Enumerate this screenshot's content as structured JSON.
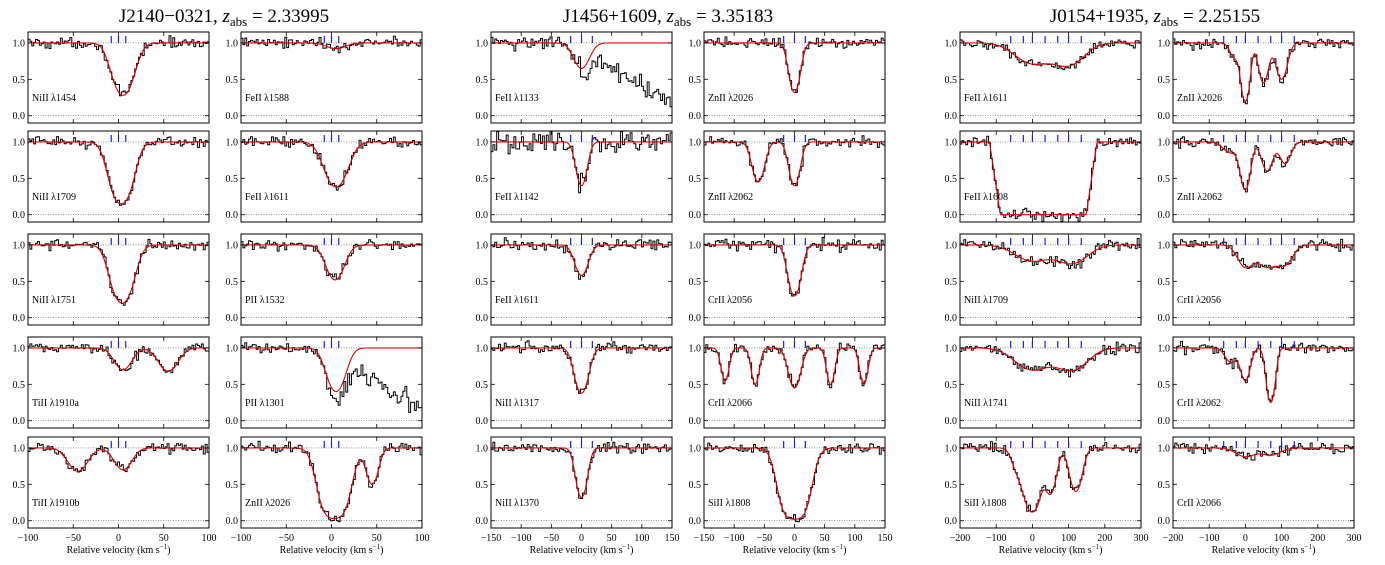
{
  "figure": {
    "groups": [
      {
        "quasar": "J2140−0321",
        "z_label": "z",
        "z_sub": "abs",
        "z_value": " = 2.33995",
        "xlim": [
          -100,
          100
        ],
        "xticks": [
          -100,
          -50,
          0,
          50,
          100
        ],
        "xlabel": "Relative velocity (km s",
        "xlabel_sup": "−1",
        "xlabel_end": ")",
        "component_velocities": [
          -8,
          0,
          8
        ],
        "columns": [
          [
            "NiII λ1454",
            "NiII λ1709",
            "NiII λ1751",
            "TiII λ1910a",
            "TiII λ1910b"
          ],
          [
            "FeII λ1588",
            "FeII λ1611",
            "PII λ1532",
            "PII λ1301",
            "ZnII λ2026"
          ]
        ]
      },
      {
        "quasar": "J1456+1609",
        "z_label": "z",
        "z_sub": "abs",
        "z_value": " = 3.35183",
        "xlim": [
          -150,
          150
        ],
        "xticks": [
          -150,
          -100,
          -50,
          0,
          50,
          100,
          150
        ],
        "xlabel": "Relative velocity (km s",
        "xlabel_sup": "−1",
        "xlabel_end": ")",
        "component_velocities": [
          -18,
          0,
          18
        ],
        "columns": [
          [
            "FeII λ1133",
            "FeII λ1142",
            "FeII λ1611",
            "NiII λ1317",
            "NiII λ1370"
          ],
          [
            "ZnII λ2026",
            "ZnII λ2062",
            "CrII λ2056",
            "CrII λ2066",
            "SiII λ1808"
          ]
        ]
      },
      {
        "quasar": "J0154+1935",
        "z_label": "z",
        "z_sub": "abs",
        "z_value": " = 2.25155",
        "xlim": [
          -200,
          300
        ],
        "xticks": [
          -200,
          -100,
          0,
          100,
          200,
          300
        ],
        "xlabel": "Relative velocity (km s",
        "xlabel_sup": "−1",
        "xlabel_end": ")",
        "component_velocities": [
          -60,
          -25,
          0,
          35,
          70,
          100,
          135
        ],
        "columns": [
          [
            "FeII λ1611",
            "FeII λ1608",
            "NiII λ1709",
            "NiII λ1741",
            "SiII λ1808"
          ],
          [
            "ZnII λ2026",
            "ZnII λ2062",
            "CrII λ2056",
            "CrII λ2062",
            "CrII λ2066"
          ]
        ]
      }
    ],
    "ylim": [
      -0.1,
      1.15
    ],
    "yticks": [
      "0.0",
      "0.5",
      "1.0"
    ],
    "colors": {
      "data": "#000000",
      "model": "#e00000",
      "ticks": "#1a1aff",
      "continuum": "#000000"
    }
  },
  "chart_data": {
    "type": "line",
    "description_of_axes": {
      "x": "Relative velocity (km s−1)",
      "y": "normalized flux"
    },
    "panels": [
      {
        "group": 0,
        "col": 0,
        "row": 0,
        "line": "NiII λ1454",
        "comps": [
          {
            "v": 5,
            "d": 0.72,
            "w": 10
          }
        ]
      },
      {
        "group": 0,
        "col": 0,
        "row": 1,
        "line": "NiII λ1709",
        "comps": [
          {
            "v": 3,
            "d": 0.85,
            "w": 10
          }
        ]
      },
      {
        "group": 0,
        "col": 0,
        "row": 2,
        "line": "NiII λ1751",
        "comps": [
          {
            "v": 4,
            "d": 0.8,
            "w": 10
          }
        ]
      },
      {
        "group": 0,
        "col": 0,
        "row": 3,
        "line": "TiII λ1910a",
        "comps": [
          {
            "v": 5,
            "d": 0.3,
            "w": 9
          },
          {
            "v": 55,
            "d": 0.32,
            "w": 10
          }
        ]
      },
      {
        "group": 0,
        "col": 0,
        "row": 4,
        "line": "TiII λ1910b",
        "comps": [
          {
            "v": -45,
            "d": 0.32,
            "w": 10
          },
          {
            "v": 5,
            "d": 0.3,
            "w": 9
          }
        ]
      },
      {
        "group": 0,
        "col": 1,
        "row": 0,
        "line": "FeII λ1588",
        "comps": [
          {
            "v": 5,
            "d": 0.08,
            "w": 10
          }
        ]
      },
      {
        "group": 0,
        "col": 1,
        "row": 1,
        "line": "FeII λ1611",
        "comps": [
          {
            "v": 5,
            "d": 0.62,
            "w": 11
          }
        ]
      },
      {
        "group": 0,
        "col": 1,
        "row": 2,
        "line": "PII λ1532",
        "comps": [
          {
            "v": 4,
            "d": 0.48,
            "w": 9
          }
        ]
      },
      {
        "group": 0,
        "col": 1,
        "row": 3,
        "line": "PII λ1301",
        "comps": [
          {
            "v": 5,
            "d": 0.6,
            "w": 9
          }
        ],
        "blend": true
      },
      {
        "group": 0,
        "col": 1,
        "row": 4,
        "line": "ZnII λ2026",
        "comps": [
          {
            "v": 3,
            "d": 0.97,
            "w": 11
          },
          {
            "v": 45,
            "d": 0.5,
            "w": 6
          }
        ]
      },
      {
        "group": 1,
        "col": 0,
        "row": 0,
        "line": "FeII λ1133",
        "comps": [
          {
            "v": 0,
            "d": 0.35,
            "w": 12
          }
        ],
        "blend": true
      },
      {
        "group": 1,
        "col": 0,
        "row": 1,
        "line": "FeII λ1142",
        "comps": [
          {
            "v": 0,
            "d": 0.6,
            "w": 8
          }
        ],
        "noisy": true
      },
      {
        "group": 1,
        "col": 0,
        "row": 2,
        "line": "FeII λ1611",
        "comps": [
          {
            "v": 0,
            "d": 0.42,
            "w": 10
          }
        ]
      },
      {
        "group": 1,
        "col": 0,
        "row": 3,
        "line": "NiII λ1317",
        "comps": [
          {
            "v": 0,
            "d": 0.62,
            "w": 10
          }
        ]
      },
      {
        "group": 1,
        "col": 0,
        "row": 4,
        "line": "NiII λ1370",
        "comps": [
          {
            "v": 0,
            "d": 0.68,
            "w": 8
          }
        ]
      },
      {
        "group": 1,
        "col": 1,
        "row": 0,
        "line": "ZnII λ2026",
        "comps": [
          {
            "v": 0,
            "d": 0.68,
            "w": 8
          }
        ]
      },
      {
        "group": 1,
        "col": 1,
        "row": 1,
        "line": "ZnII λ2062",
        "comps": [
          {
            "v": -60,
            "d": 0.55,
            "w": 9
          },
          {
            "v": 0,
            "d": 0.6,
            "w": 8
          }
        ]
      },
      {
        "group": 1,
        "col": 1,
        "row": 2,
        "line": "CrII λ2056",
        "comps": [
          {
            "v": 0,
            "d": 0.7,
            "w": 9
          }
        ]
      },
      {
        "group": 1,
        "col": 1,
        "row": 3,
        "line": "CrII λ2066",
        "comps": [
          {
            "v": -115,
            "d": 0.45,
            "w": 6
          },
          {
            "v": -65,
            "d": 0.5,
            "w": 6
          },
          {
            "v": 0,
            "d": 0.55,
            "w": 9
          },
          {
            "v": 60,
            "d": 0.5,
            "w": 6
          },
          {
            "v": 115,
            "d": 0.5,
            "w": 6
          }
        ]
      },
      {
        "group": 1,
        "col": 1,
        "row": 4,
        "line": "SiII λ1808",
        "comps": [
          {
            "v": 0,
            "d": 0.98,
            "w": 16
          }
        ]
      },
      {
        "group": 2,
        "col": 0,
        "row": 0,
        "line": "FeII λ1611",
        "comps": [
          {
            "v": 0,
            "d": 0.28,
            "w": 45
          },
          {
            "v": 100,
            "d": 0.3,
            "w": 40
          }
        ]
      },
      {
        "group": 2,
        "col": 0,
        "row": 1,
        "line": "FeII λ1608",
        "comps": [
          {
            "v": 30,
            "d": 1.02,
            "w": 95
          }
        ],
        "saturated": true
      },
      {
        "group": 2,
        "col": 0,
        "row": 2,
        "line": "NiII λ1709",
        "comps": [
          {
            "v": 0,
            "d": 0.22,
            "w": 45
          },
          {
            "v": 110,
            "d": 0.25,
            "w": 40
          }
        ]
      },
      {
        "group": 2,
        "col": 0,
        "row": 3,
        "line": "NiII λ1741",
        "comps": [
          {
            "v": 0,
            "d": 0.3,
            "w": 45
          },
          {
            "v": 110,
            "d": 0.3,
            "w": 40
          }
        ]
      },
      {
        "group": 2,
        "col": 0,
        "row": 4,
        "line": "SiII λ1808",
        "comps": [
          {
            "v": 0,
            "d": 0.88,
            "w": 18
          },
          {
            "v": 50,
            "d": 0.62,
            "w": 14
          },
          {
            "v": 120,
            "d": 0.6,
            "w": 15
          },
          {
            "v": -40,
            "d": 0.3,
            "w": 15
          }
        ]
      },
      {
        "group": 2,
        "col": 1,
        "row": 0,
        "line": "ZnII λ2026",
        "comps": [
          {
            "v": 0,
            "d": 0.8,
            "w": 10
          },
          {
            "v": 50,
            "d": 0.55,
            "w": 12
          },
          {
            "v": 100,
            "d": 0.5,
            "w": 14
          },
          {
            "v": -30,
            "d": 0.2,
            "w": 12
          }
        ]
      },
      {
        "group": 2,
        "col": 1,
        "row": 1,
        "line": "ZnII λ2062",
        "comps": [
          {
            "v": 0,
            "d": 0.65,
            "w": 12
          },
          {
            "v": 60,
            "d": 0.4,
            "w": 14
          },
          {
            "v": 110,
            "d": 0.3,
            "w": 14
          },
          {
            "v": -40,
            "d": 0.15,
            "w": 20
          }
        ]
      },
      {
        "group": 2,
        "col": 1,
        "row": 2,
        "line": "CrII λ2056",
        "comps": [
          {
            "v": 0,
            "d": 0.3,
            "w": 20
          },
          {
            "v": 60,
            "d": 0.3,
            "w": 25
          },
          {
            "v": 110,
            "d": 0.25,
            "w": 20
          }
        ]
      },
      {
        "group": 2,
        "col": 1,
        "row": 3,
        "line": "CrII λ2062",
        "comps": [
          {
            "v": 0,
            "d": 0.45,
            "w": 12
          },
          {
            "v": 70,
            "d": 0.75,
            "w": 10
          },
          {
            "v": -40,
            "d": 0.2,
            "w": 15
          }
        ]
      },
      {
        "group": 2,
        "col": 1,
        "row": 4,
        "line": "CrII λ2066",
        "comps": [
          {
            "v": 0,
            "d": 0.12,
            "w": 25
          },
          {
            "v": 70,
            "d": 0.1,
            "w": 25
          }
        ]
      }
    ]
  }
}
